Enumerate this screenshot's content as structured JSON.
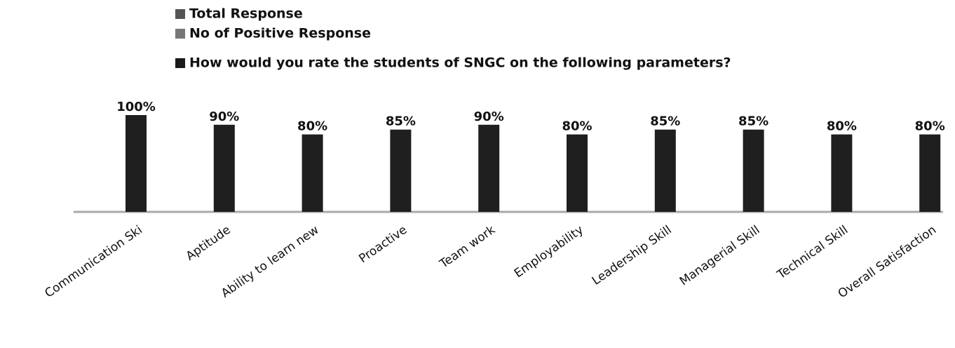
{
  "chart_data": {
    "type": "bar",
    "legend": [
      {
        "name": "Total Response",
        "color": "#555555"
      },
      {
        "name": "No of Positive Response",
        "color": "#777777"
      },
      {
        "name": "How would you rate the students of SNGC on the following parameters?",
        "color": "#1a1a1a"
      }
    ],
    "categories": [
      "Communication Ski",
      "Aptitude",
      "Ability to learn new",
      "Proactive",
      "Team work",
      "Employability",
      "Leadership Skill",
      "Managerial Skill",
      "Technical Skill",
      "Overall Satisfaction"
    ],
    "values": [
      100,
      90,
      80,
      85,
      90,
      80,
      85,
      85,
      80,
      80
    ],
    "value_labels": [
      "100%",
      "90%",
      "80%",
      "85%",
      "90%",
      "80%",
      "85%",
      "85%",
      "80%",
      "80%"
    ],
    "color": "#1f1f1f"
  }
}
